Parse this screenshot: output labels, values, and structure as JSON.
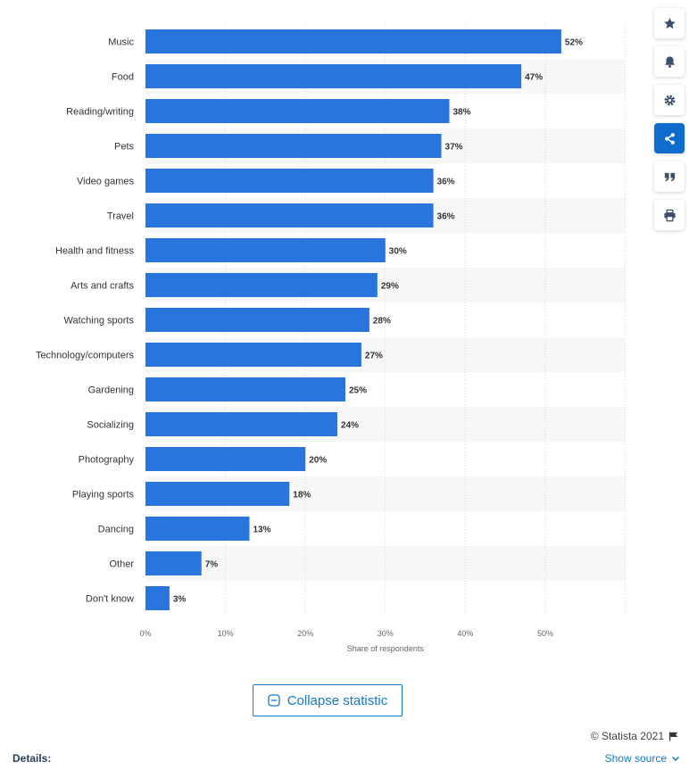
{
  "chart_data": {
    "type": "bar",
    "orientation": "horizontal",
    "categories": [
      "Music",
      "Food",
      "Reading/writing",
      "Pets",
      "Video games",
      "Travel",
      "Health and fitness",
      "Arts and crafts",
      "Watching sports",
      "Technology/computers",
      "Gardening",
      "Socializing",
      "Photography",
      "Playing sports",
      "Dancing",
      "Other",
      "Don't know"
    ],
    "values": [
      52,
      47,
      38,
      37,
      36,
      36,
      30,
      29,
      28,
      27,
      25,
      24,
      20,
      18,
      13,
      7,
      3
    ],
    "value_labels": [
      "52%",
      "47%",
      "38%",
      "37%",
      "36%",
      "36%",
      "30%",
      "29%",
      "28%",
      "27%",
      "25%",
      "24%",
      "20%",
      "18%",
      "13%",
      "7%",
      "3%"
    ],
    "xlabel": "Share of respondents",
    "ylabel": "",
    "xlim": [
      0,
      60
    ],
    "x_ticks": [
      0,
      10,
      20,
      30,
      40,
      50
    ],
    "x_tick_labels": [
      "0%",
      "10%",
      "20%",
      "30%",
      "40%",
      "50%"
    ],
    "grid": true,
    "bar_color": "#2876dd",
    "alternate_row_color": "#f7f7f7"
  },
  "toolbar": {
    "buttons": [
      {
        "name": "star",
        "icon": "star-icon"
      },
      {
        "name": "bell",
        "icon": "bell-icon"
      },
      {
        "name": "gear",
        "icon": "gear-icon"
      },
      {
        "name": "share",
        "icon": "share-icon",
        "active": true
      },
      {
        "name": "quote",
        "icon": "quote-icon"
      },
      {
        "name": "print",
        "icon": "print-icon"
      }
    ]
  },
  "collapse_label": "Collapse statistic",
  "copyright": "© Statista 2021",
  "details_label": "Details:",
  "show_source_label": "Show source",
  "colors": {
    "accent": "#1479c6",
    "active_button": "#0f6ccc",
    "icon": "#3d4f6b"
  }
}
